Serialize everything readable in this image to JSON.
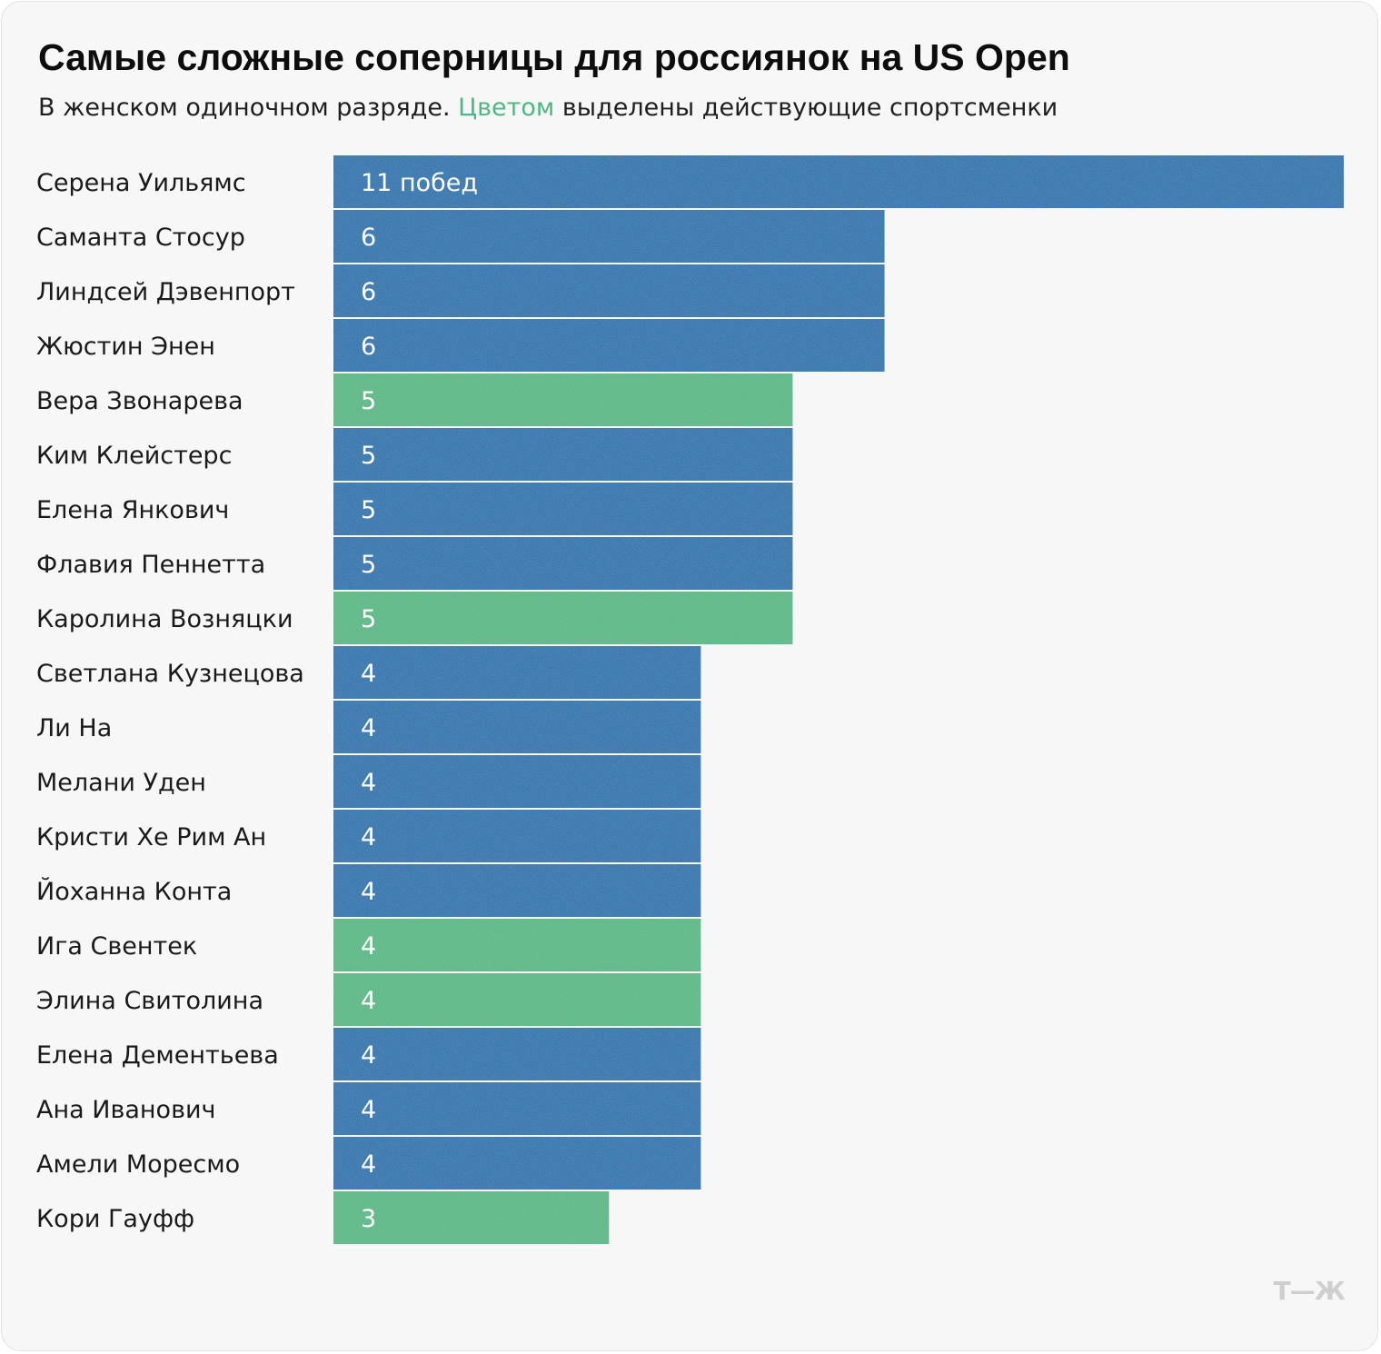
{
  "title": "Самые сложные соперницы для россиянок на US Open",
  "subtitle": {
    "before": "В женском одиночном разряде. ",
    "highlight": "Цветом",
    "after": " выделены действующие спортсменки"
  },
  "logo": "Т—Ж",
  "colors": {
    "retired": "#1f72ad",
    "active": "#54b784"
  },
  "chart_data": {
    "type": "bar",
    "orientation": "horizontal",
    "xlim": [
      0,
      11
    ],
    "categories": [
      "Серена Уильямс",
      "Саманта Стосур",
      "Линдсей Дэвенпорт",
      "Жюстин Энен",
      "Вера Звонарева",
      "Ким Клейстерс",
      "Елена Янкович",
      "Флавия Пеннетта",
      "Каролина Возняцки",
      "Светлана Кузнецова",
      "Ли На",
      "Мелани Уден",
      "Кристи Хе Рим Ан",
      "Йоханна Конта",
      "Ига Свентек",
      "Элина Свитолина",
      "Елена Дементьева",
      "Ана Иванович",
      "Амели Моресмо",
      "Кори Гауфф"
    ],
    "values": [
      11,
      6,
      6,
      6,
      5,
      5,
      5,
      5,
      5,
      4,
      4,
      4,
      4,
      4,
      4,
      4,
      4,
      4,
      4,
      3
    ],
    "active": [
      false,
      false,
      false,
      false,
      true,
      false,
      false,
      false,
      true,
      false,
      false,
      false,
      false,
      false,
      true,
      true,
      false,
      false,
      false,
      true
    ],
    "value_labels": [
      "11 побед",
      "6",
      "6",
      "6",
      "5",
      "5",
      "5",
      "5",
      "5",
      "4",
      "4",
      "4",
      "4",
      "4",
      "4",
      "4",
      "4",
      "4",
      "4",
      "3"
    ]
  }
}
